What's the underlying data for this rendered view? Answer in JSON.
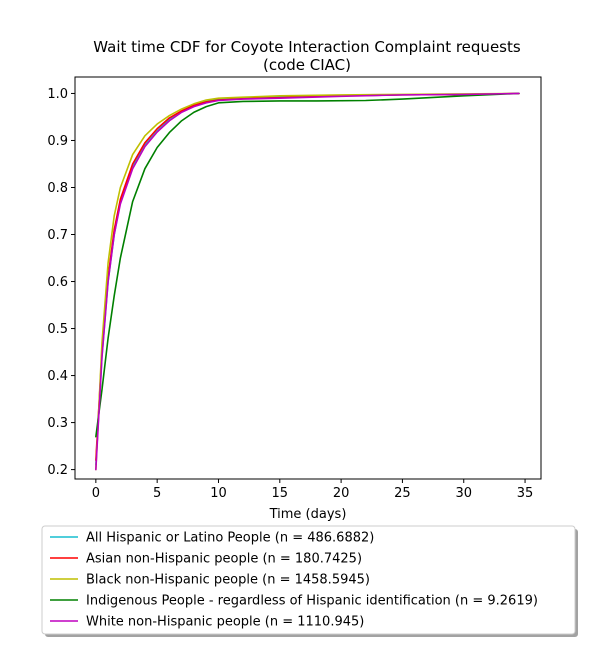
{
  "chart_data": {
    "type": "line",
    "title_line1": "Wait time CDF for Coyote Interaction Complaint  requests",
    "title_line2": "(code CIAC)",
    "xlabel": "Time (days)",
    "ylabel": "",
    "xlim": [
      -1.7,
      36.3
    ],
    "ylim": [
      0.18,
      1.035
    ],
    "xticks": [
      0,
      5,
      10,
      15,
      20,
      25,
      30,
      35
    ],
    "yticks": [
      0.2,
      0.3,
      0.4,
      0.5,
      0.6,
      0.7,
      0.8,
      0.9,
      1.0
    ],
    "xtick_labels": [
      "0",
      "5",
      "10",
      "15",
      "20",
      "25",
      "30",
      "35"
    ],
    "ytick_labels": [
      "0.2",
      "0.3",
      "0.4",
      "0.5",
      "0.6",
      "0.7",
      "0.8",
      "0.9",
      "1.0"
    ],
    "grid": false,
    "legend_placement": "below plot",
    "series": [
      {
        "name": "All Hispanic or Latino People (n = 486.6882)",
        "color": "#17becf",
        "x": [
          0,
          0.5,
          1,
          1.5,
          2,
          3,
          4,
          5,
          6,
          7,
          8,
          9,
          10,
          12,
          15,
          20,
          25,
          30,
          34.5
        ],
        "y": [
          0.21,
          0.44,
          0.6,
          0.7,
          0.77,
          0.845,
          0.89,
          0.92,
          0.945,
          0.962,
          0.975,
          0.983,
          0.987,
          0.99,
          0.992,
          0.995,
          0.997,
          0.998,
          1.0
        ]
      },
      {
        "name": "Asian non-Hispanic people (n = 180.7425)",
        "color": "#ff0000",
        "x": [
          0,
          0.5,
          1,
          1.5,
          2,
          3,
          4,
          5,
          6,
          7,
          8,
          9,
          10,
          12,
          15,
          20,
          25,
          30,
          34.5
        ],
        "y": [
          0.22,
          0.45,
          0.61,
          0.71,
          0.775,
          0.85,
          0.895,
          0.925,
          0.948,
          0.963,
          0.975,
          0.982,
          0.986,
          0.989,
          0.991,
          0.995,
          0.997,
          0.998,
          1.0
        ]
      },
      {
        "name": "Black non-Hispanic people (n = 1458.5945)",
        "color": "#bfbf00",
        "x": [
          0,
          0.5,
          1,
          1.5,
          2,
          3,
          4,
          5,
          6,
          7,
          8,
          9,
          10,
          12,
          15,
          20,
          25,
          30,
          34.5
        ],
        "y": [
          0.2,
          0.47,
          0.64,
          0.74,
          0.8,
          0.87,
          0.91,
          0.935,
          0.953,
          0.967,
          0.978,
          0.986,
          0.99,
          0.992,
          0.995,
          0.997,
          0.998,
          0.999,
          1.0
        ]
      },
      {
        "name": "Indigenous People - regardless of Hispanic identification (n = 9.2619)",
        "color": "#008000",
        "x": [
          0,
          0.5,
          1,
          1.5,
          2,
          3,
          4,
          5,
          6,
          7,
          8,
          9,
          10,
          12,
          15,
          18,
          22,
          25,
          30,
          34.5
        ],
        "y": [
          0.27,
          0.37,
          0.48,
          0.57,
          0.65,
          0.77,
          0.84,
          0.885,
          0.917,
          0.942,
          0.96,
          0.972,
          0.98,
          0.983,
          0.984,
          0.984,
          0.985,
          0.988,
          0.995,
          1.0
        ]
      },
      {
        "name": "White non-Hispanic people (n = 1110.945)",
        "color": "#bf00bf",
        "x": [
          0,
          0.5,
          1,
          1.5,
          2,
          3,
          4,
          5,
          6,
          7,
          8,
          9,
          10,
          12,
          15,
          20,
          25,
          30,
          34.5
        ],
        "y": [
          0.2,
          0.44,
          0.6,
          0.7,
          0.765,
          0.84,
          0.887,
          0.918,
          0.942,
          0.96,
          0.972,
          0.98,
          0.985,
          0.988,
          0.99,
          0.994,
          0.997,
          0.998,
          1.0
        ]
      }
    ]
  }
}
